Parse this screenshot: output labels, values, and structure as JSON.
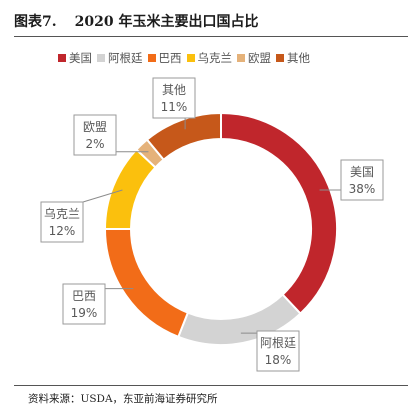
{
  "figure": {
    "number": "图表7.",
    "title": "2020 年玉米主要出口国占比"
  },
  "source": "资料来源：USDA，东亚前海证券研究所",
  "chart_data": {
    "type": "pie",
    "donut": true,
    "categories": [
      "美国",
      "阿根廷",
      "巴西",
      "乌克兰",
      "欧盟",
      "其他"
    ],
    "values": [
      38,
      18,
      19,
      12,
      2,
      11
    ],
    "labels": [
      "38%",
      "18%",
      "19%",
      "12%",
      "2%",
      "11%"
    ],
    "colors": [
      "#c0262c",
      "#d3d3d3",
      "#f26c18",
      "#fbc00d",
      "#e5b27a",
      "#c6581a"
    ],
    "legend_position": "top"
  }
}
